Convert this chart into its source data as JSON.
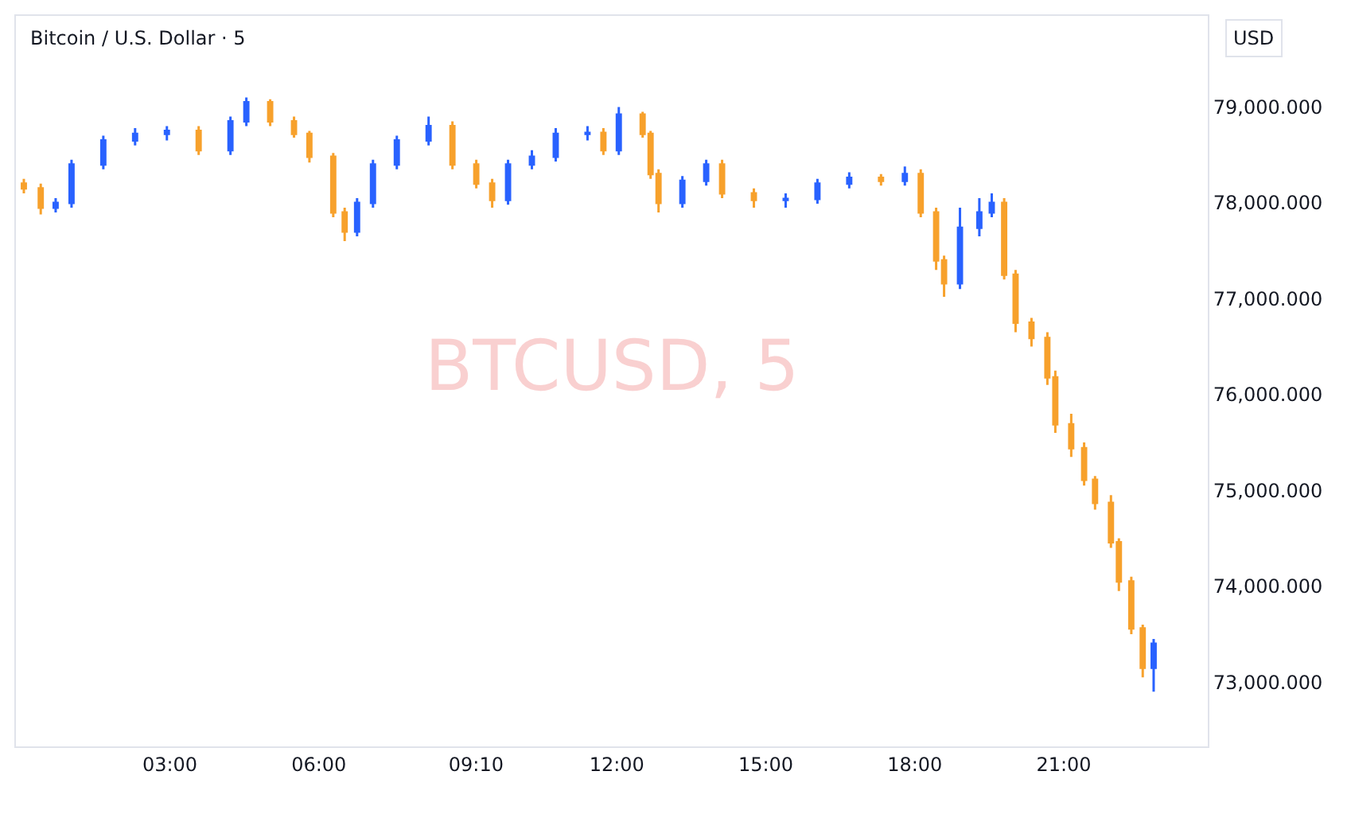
{
  "chart_data": {
    "type": "candlestick",
    "title": "Bitcoin / U.S. Dollar · 5",
    "annotations": [
      "BTCUSD, 5",
      "USD"
    ],
    "x": [
      0.06,
      0.4,
      0.7,
      1.02,
      1.66,
      2.3,
      2.94,
      3.58,
      4.22,
      4.54,
      5.02,
      5.5,
      5.81,
      6.29,
      6.52,
      6.77,
      7.09,
      7.57,
      8.21,
      8.69,
      9.17,
      9.49,
      9.81,
      10.29,
      10.77,
      11.41,
      11.73,
      12.04,
      12.52,
      12.68,
      12.84,
      13.32,
      13.8,
      14.12,
      14.76,
      15.4,
      16.04,
      16.68,
      17.32,
      17.8,
      18.12,
      18.43,
      18.59,
      18.91,
      19.3,
      19.55,
      19.8,
      20.03,
      20.35,
      20.67,
      20.83,
      21.15,
      21.41,
      21.63,
      21.95,
      22.11,
      22.36,
      22.59,
      22.81
    ],
    "ohlc": [
      [
        78200,
        78250,
        78100,
        78150
      ],
      [
        78150,
        78200,
        77880,
        77950
      ],
      [
        77950,
        78050,
        77900,
        78000
      ],
      [
        78000,
        78450,
        77950,
        78400
      ],
      [
        78400,
        78700,
        78350,
        78650
      ],
      [
        78650,
        78780,
        78600,
        78720
      ],
      [
        78720,
        78800,
        78650,
        78750
      ],
      [
        78750,
        78800,
        78500,
        78550
      ],
      [
        78550,
        78900,
        78500,
        78850
      ],
      [
        78850,
        79100,
        78800,
        79050
      ],
      [
        79050,
        79080,
        78800,
        78850
      ],
      [
        78850,
        78900,
        78680,
        78720
      ],
      [
        78720,
        78750,
        78420,
        78480
      ],
      [
        78480,
        78520,
        77850,
        77900
      ],
      [
        77900,
        77950,
        77600,
        77700
      ],
      [
        77700,
        78050,
        77650,
        78000
      ],
      [
        78000,
        78450,
        77950,
        78400
      ],
      [
        78400,
        78700,
        78350,
        78650
      ],
      [
        78650,
        78900,
        78600,
        78800
      ],
      [
        78800,
        78850,
        78350,
        78400
      ],
      [
        78400,
        78450,
        78150,
        78200
      ],
      [
        78200,
        78250,
        77950,
        78030
      ],
      [
        78030,
        78450,
        77980,
        78400
      ],
      [
        78400,
        78550,
        78350,
        78480
      ],
      [
        78480,
        78780,
        78430,
        78720
      ],
      [
        78720,
        78800,
        78650,
        78730
      ],
      [
        78730,
        78780,
        78500,
        78550
      ],
      [
        78550,
        79000,
        78500,
        78920
      ],
      [
        78920,
        78950,
        78680,
        78720
      ],
      [
        78720,
        78750,
        78250,
        78300
      ],
      [
        78300,
        78350,
        77900,
        78000
      ],
      [
        78000,
        78280,
        77950,
        78230
      ],
      [
        78230,
        78450,
        78180,
        78400
      ],
      [
        78400,
        78450,
        78050,
        78100
      ],
      [
        78100,
        78150,
        77950,
        78030
      ],
      [
        78030,
        78100,
        77950,
        78040
      ],
      [
        78040,
        78250,
        77990,
        78200
      ],
      [
        78200,
        78320,
        78150,
        78260
      ],
      [
        78260,
        78300,
        78180,
        78230
      ],
      [
        78230,
        78380,
        78180,
        78300
      ],
      [
        78300,
        78350,
        77850,
        77900
      ],
      [
        77900,
        77950,
        77300,
        77400
      ],
      [
        77400,
        77450,
        77020,
        77160
      ],
      [
        77160,
        77950,
        77100,
        77740
      ],
      [
        77740,
        78050,
        77650,
        77900
      ],
      [
        77900,
        78100,
        77850,
        78000
      ],
      [
        78000,
        78050,
        77200,
        77250
      ],
      [
        77250,
        77300,
        76650,
        76750
      ],
      [
        76750,
        76800,
        76500,
        76590
      ],
      [
        76590,
        76650,
        76100,
        76180
      ],
      [
        76180,
        76250,
        75600,
        75690
      ],
      [
        75690,
        75800,
        75350,
        75440
      ],
      [
        75440,
        75500,
        75050,
        75110
      ],
      [
        75110,
        75150,
        74800,
        74870
      ],
      [
        74870,
        74950,
        74400,
        74460
      ],
      [
        74460,
        74500,
        73950,
        74050
      ],
      [
        74050,
        74100,
        73500,
        73560
      ],
      [
        73560,
        73600,
        73050,
        73150
      ],
      [
        73150,
        73450,
        72900,
        73400
      ]
    ],
    "colors": [
      "#f7a12c",
      "#f7a12c",
      "#2962ff",
      "#2962ff",
      "#2962ff",
      "#2962ff",
      "#2962ff",
      "#f7a12c",
      "#2962ff",
      "#2962ff",
      "#f7a12c",
      "#f7a12c",
      "#f7a12c",
      "#f7a12c",
      "#f7a12c",
      "#2962ff",
      "#2962ff",
      "#2962ff",
      "#2962ff",
      "#f7a12c",
      "#f7a12c",
      "#f7a12c",
      "#2962ff",
      "#2962ff",
      "#2962ff",
      "#2962ff",
      "#f7a12c",
      "#2962ff",
      "#f7a12c",
      "#f7a12c",
      "#f7a12c",
      "#2962ff",
      "#2962ff",
      "#f7a12c",
      "#f7a12c",
      "#2962ff",
      "#2962ff",
      "#2962ff",
      "#f7a12c",
      "#2962ff",
      "#f7a12c",
      "#f7a12c",
      "#f7a12c",
      "#2962ff",
      "#2962ff",
      "#2962ff",
      "#f7a12c",
      "#f7a12c",
      "#f7a12c",
      "#f7a12c",
      "#f7a12c",
      "#f7a12c",
      "#f7a12c",
      "#f7a12c",
      "#f7a12c",
      "#f7a12c",
      "#f7a12c",
      "#f7a12c",
      "#2962ff"
    ],
    "xlim": [
      -0.1,
      23.9
    ],
    "xticks": [
      {
        "value": 3,
        "label": "03:00"
      },
      {
        "value": 6,
        "label": "06:00"
      },
      {
        "value": 9.1667,
        "label": "09:10"
      },
      {
        "value": 12,
        "label": "12:00"
      },
      {
        "value": 15,
        "label": "15:00"
      },
      {
        "value": 18,
        "label": "18:00"
      },
      {
        "value": 21,
        "label": "21:00"
      }
    ],
    "ylim": [
      72330,
      79950
    ],
    "yticks": [
      {
        "value": 73000,
        "label": "73,000.000"
      },
      {
        "value": 74000,
        "label": "74,000.000"
      },
      {
        "value": 75000,
        "label": "75,000.000"
      },
      {
        "value": 76000,
        "label": "76,000.000"
      },
      {
        "value": 77000,
        "label": "77,000.000"
      },
      {
        "value": 78000,
        "label": "78,000.000"
      },
      {
        "value": 79000,
        "label": "79,000.000"
      }
    ],
    "grid": false
  }
}
